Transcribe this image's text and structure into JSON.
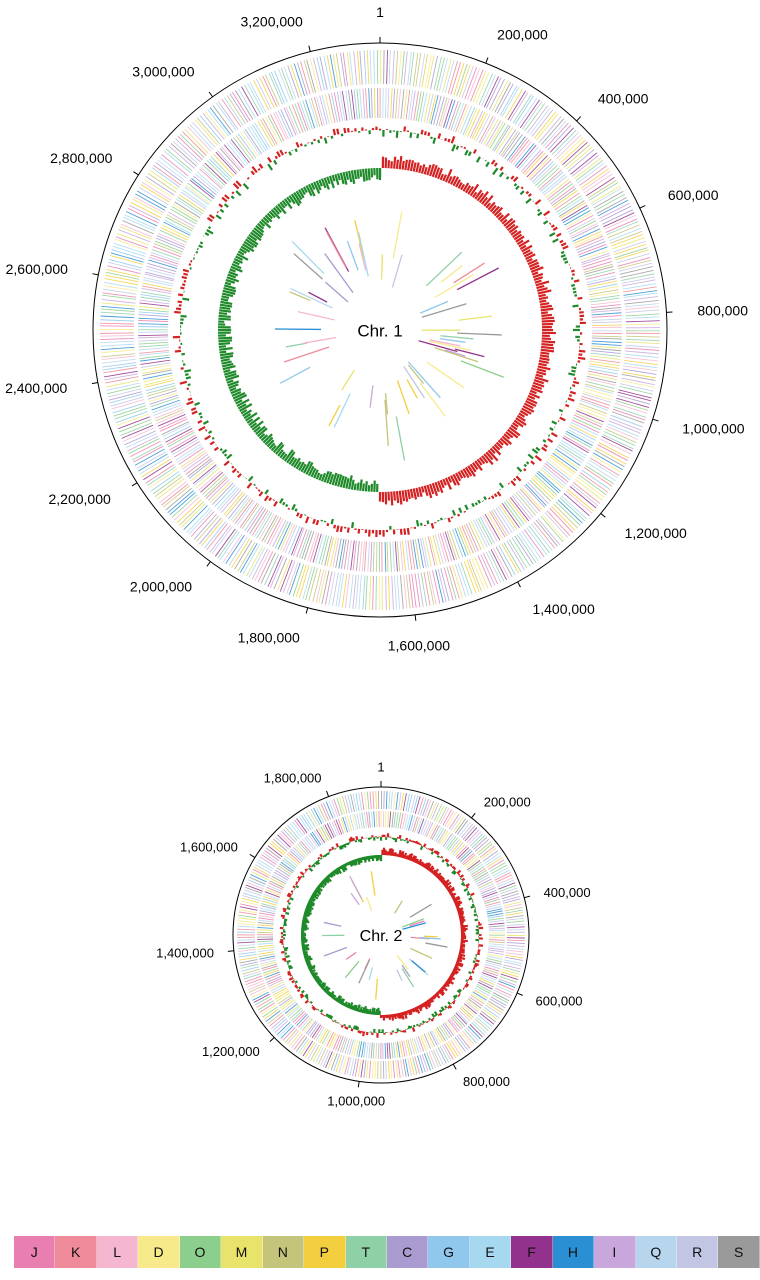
{
  "chromosomes": [
    {
      "label": "Chr. 1",
      "tick_labels": [
        "1",
        "200,000",
        "400,000",
        "600,000",
        "800,000",
        "1,000,000",
        "1,200,000",
        "1,400,000",
        "1,600,000",
        "1,800,000",
        "2,000,000",
        "2,200,000",
        "2,400,000",
        "2,600,000",
        "2,800,000",
        "3,000,000",
        "3,200,000"
      ],
      "tick_positions": [
        1,
        200000,
        400000,
        600000,
        800000,
        1000000,
        1200000,
        1400000,
        1600000,
        1800000,
        2000000,
        2200000,
        2400000,
        2600000,
        2800000,
        3000000,
        3200000
      ],
      "length": 3330000
    },
    {
      "label": "Chr. 2",
      "tick_labels": [
        "1",
        "200,000",
        "400,000",
        "600,000",
        "800,000",
        "1,000,000",
        "1,200,000",
        "1,400,000",
        "1,600,000",
        "1,800,000"
      ],
      "tick_positions": [
        1,
        200000,
        400000,
        600000,
        800000,
        1000000,
        1200000,
        1400000,
        1600000,
        1800000
      ],
      "length": 1910000
    }
  ],
  "legend": [
    {
      "code": "J",
      "color": "#e87fb0"
    },
    {
      "code": "K",
      "color": "#ef8a9a"
    },
    {
      "code": "L",
      "color": "#f5b7d0"
    },
    {
      "code": "D",
      "color": "#f7ea8a"
    },
    {
      "code": "O",
      "color": "#8ccf8c"
    },
    {
      "code": "M",
      "color": "#e8e36a"
    },
    {
      "code": "N",
      "color": "#c4c47a"
    },
    {
      "code": "P",
      "color": "#f3cf3f"
    },
    {
      "code": "T",
      "color": "#8fd0a6"
    },
    {
      "code": "C",
      "color": "#a99ad0"
    },
    {
      "code": "G",
      "color": "#8fc8ec"
    },
    {
      "code": "E",
      "color": "#a6d8f0"
    },
    {
      "code": "F",
      "color": "#93328c"
    },
    {
      "code": "H",
      "color": "#2a8fd3"
    },
    {
      "code": "I",
      "color": "#c8a8dc"
    },
    {
      "code": "Q",
      "color": "#b7d6ee"
    },
    {
      "code": "R",
      "color": "#c2c6e4"
    },
    {
      "code": "S",
      "color": "#9a9a9a"
    }
  ],
  "colors": {
    "gc_positive": "#d42121",
    "gc_negative": "#1f8a2a",
    "outline": "#000000"
  }
}
